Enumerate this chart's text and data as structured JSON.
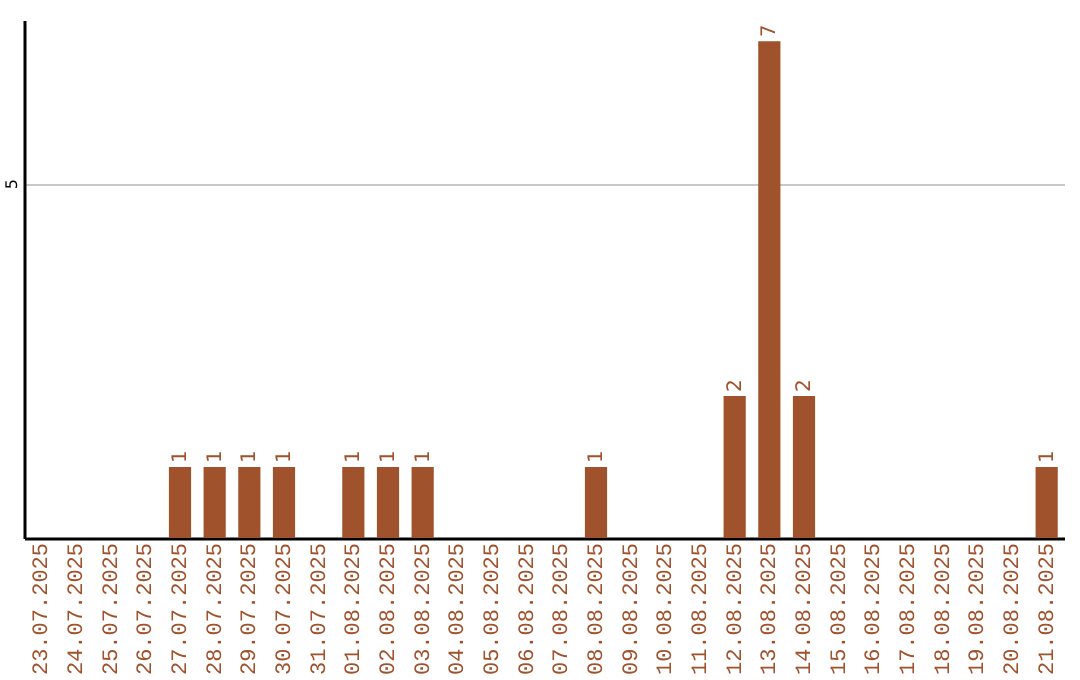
{
  "chart_data": {
    "type": "bar",
    "categories": [
      "23.07.2025",
      "24.07.2025",
      "25.07.2025",
      "26.07.2025",
      "27.07.2025",
      "28.07.2025",
      "29.07.2025",
      "30.07.2025",
      "31.07.2025",
      "01.08.2025",
      "02.08.2025",
      "03.08.2025",
      "04.08.2025",
      "05.08.2025",
      "06.08.2025",
      "07.08.2025",
      "08.08.2025",
      "09.08.2025",
      "10.08.2025",
      "11.08.2025",
      "12.08.2025",
      "13.08.2025",
      "14.08.2025",
      "15.08.2025",
      "16.08.2025",
      "17.08.2025",
      "18.08.2025",
      "19.08.2025",
      "20.08.2025",
      "21.08.2025"
    ],
    "values": [
      0,
      0,
      0,
      0,
      1,
      1,
      1,
      1,
      0,
      1,
      1,
      1,
      0,
      0,
      0,
      0,
      1,
      0,
      0,
      0,
      2,
      7,
      2,
      0,
      0,
      0,
      0,
      0,
      0,
      1
    ],
    "value_labels": [
      null,
      null,
      null,
      null,
      "1",
      "1",
      "1",
      "1",
      null,
      "1",
      "1",
      "1",
      null,
      null,
      null,
      null,
      "1",
      null,
      null,
      null,
      "2",
      "7",
      "2",
      null,
      null,
      null,
      null,
      null,
      null,
      "1"
    ],
    "color": "#a0522d",
    "ylim": [
      0,
      7.3
    ],
    "yticks": [
      5
    ],
    "grid": "y"
  }
}
